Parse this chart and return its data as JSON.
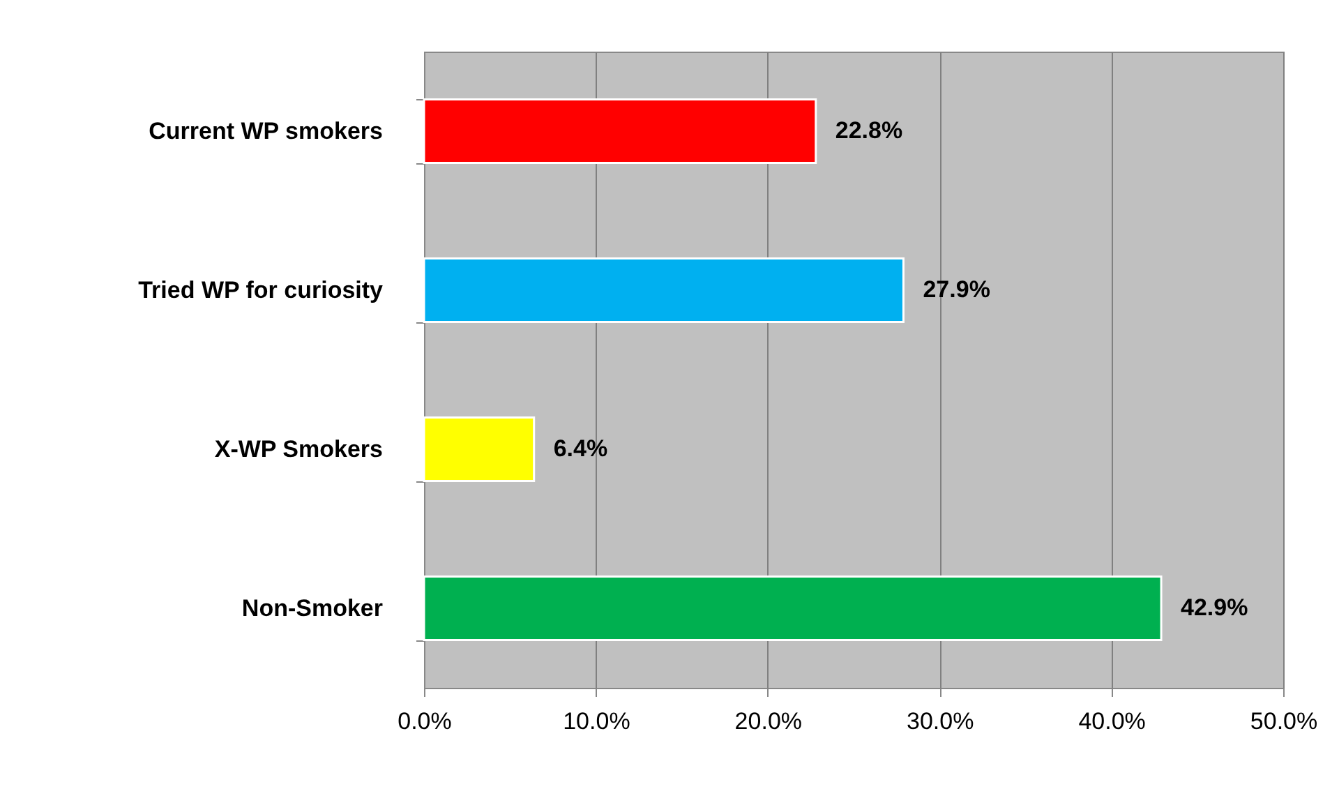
{
  "chart_data": {
    "type": "bar",
    "orientation": "horizontal",
    "categories": [
      "Current WP smokers",
      "Tried WP for curiosity",
      "X-WP Smokers",
      "Non-Smoker"
    ],
    "values": [
      22.8,
      27.9,
      6.4,
      42.9
    ],
    "colors": [
      "#ff0000",
      "#00b0f0",
      "#ffff00",
      "#00b050"
    ],
    "value_labels": [
      "22.8%",
      "27.9%",
      "6.4%",
      "42.9%"
    ],
    "xlim": [
      0,
      50
    ],
    "xticks": [
      {
        "value": 0,
        "label": "0.0%"
      },
      {
        "value": 10,
        "label": "10.0%"
      },
      {
        "value": 20,
        "label": "20.0%"
      },
      {
        "value": 30,
        "label": "30.0%"
      },
      {
        "value": 40,
        "label": "40.0%"
      },
      {
        "value": 50,
        "label": "50.0%"
      }
    ],
    "grid": "x"
  }
}
